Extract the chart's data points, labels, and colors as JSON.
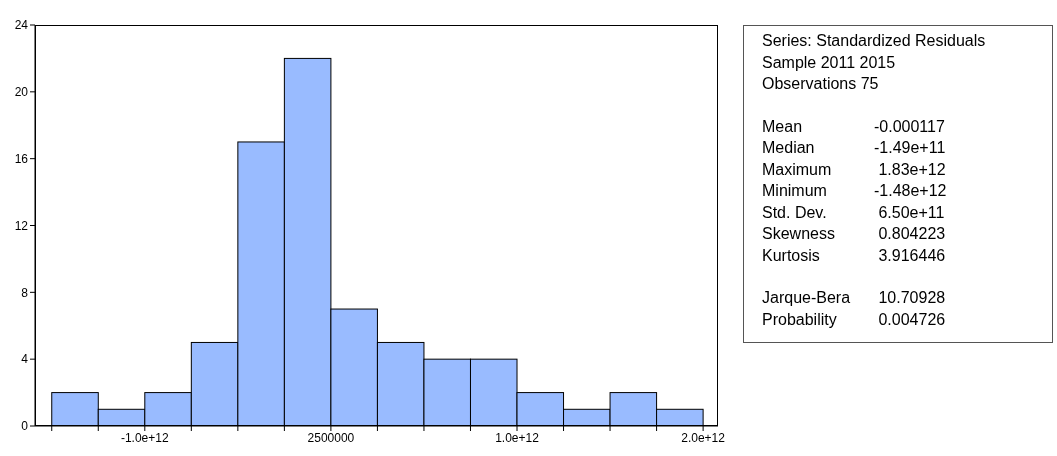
{
  "chart_data": {
    "type": "histogram",
    "bins": [
      -1500000000000.0,
      -1250000000000.0,
      -1000000000000.0,
      -750000000000.0,
      -500000000000.0,
      -250000000000.0,
      0,
      250000000000.0,
      500000000000.0,
      750000000000.0,
      1000000000000.0,
      1250000000000.0,
      1500000000000.0,
      1750000000000.0,
      2000000000000.0
    ],
    "values": [
      2,
      1,
      2,
      5,
      17,
      22,
      7,
      5,
      4,
      4,
      2,
      1,
      2,
      1
    ],
    "color": "#99bbff",
    "xlim": [
      -1590000000000.0,
      2080000000000.0
    ],
    "xticks": [
      {
        "value": -1500000000000.0,
        "label": null
      },
      {
        "value": -1250000000000.0,
        "label": null
      },
      {
        "value": -1000000000000.0,
        "label": "-1.0e+12"
      },
      {
        "value": -750000000000.0,
        "label": null
      },
      {
        "value": -500000000000.0,
        "label": null
      },
      {
        "value": -250000000000.0,
        "label": null
      },
      {
        "value": 2500000,
        "label": "2500000"
      },
      {
        "value": 250000000000.0,
        "label": null
      },
      {
        "value": 500000000000.0,
        "label": null
      },
      {
        "value": 750000000000.0,
        "label": null
      },
      {
        "value": 1000000000000.0,
        "label": "1.0e+12"
      },
      {
        "value": 1250000000000.0,
        "label": null
      },
      {
        "value": 1500000000000.0,
        "label": null
      },
      {
        "value": 1750000000000.0,
        "label": null
      },
      {
        "value": 2000000000000.0,
        "label": "2.0e+12"
      }
    ],
    "ylim": [
      0,
      24
    ],
    "yticks": [
      0,
      4,
      8,
      12,
      16,
      20,
      24
    ],
    "grid": false,
    "legend": false,
    "annotations": [
      "Series: Standardized Residuals",
      "Sample 2011 2015",
      "Observations 75",
      "Mean\t-0.000117",
      "Median\t-1.49e+11",
      "Maximum\t 1.83e+12",
      "Minimum\t-1.48e+12",
      "Std. Dev.\t 6.50e+11",
      "Skewness\t 0.804223",
      "Kurtosis\t 3.916446",
      "Jarque-Bera\t 10.70928",
      "Probability\t 0.004726"
    ]
  }
}
